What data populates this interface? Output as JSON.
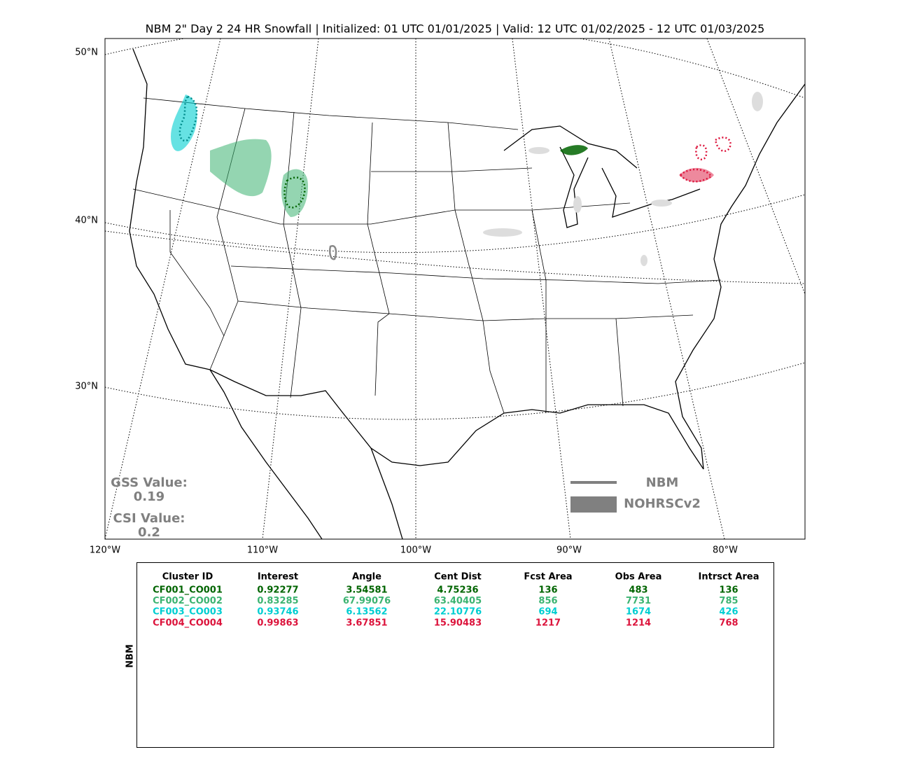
{
  "map": {
    "title": "NBM 2\" Day 2 24 HR Snowfall | Initialized: 01 UTC 01/01/2025 | Valid: 12 UTC 01/02/2025 - 12 UTC 01/03/2025",
    "lat_labels": [
      "50°N",
      "40°N",
      "30°N"
    ],
    "lon_labels": [
      "120°W",
      "110°W",
      "100°W",
      "90°W",
      "80°W"
    ],
    "stats": {
      "gss_label": "GSS Value:",
      "gss_value": "0.19",
      "csi_label": "CSI Value:",
      "csi_value": "0.2"
    },
    "legend": {
      "line_label": "NBM",
      "fill_label": "NOHRSCv2"
    }
  },
  "table": {
    "side_label": "NBM",
    "header": [
      "Cluster ID",
      "Interest",
      "Angle",
      "Cent Dist",
      "Fcst Area",
      "Obs Area",
      "Intrsct Area"
    ],
    "rows": [
      {
        "color": "#006400",
        "cells": [
          "CF001_CO001",
          "0.92277",
          "3.54581",
          "4.75236",
          "136",
          "483",
          "136"
        ]
      },
      {
        "color": "#3cb371",
        "cells": [
          "CF002_CO002",
          "0.83285",
          "67.99076",
          "63.40405",
          "856",
          "7731",
          "785"
        ]
      },
      {
        "color": "#00ced1",
        "cells": [
          "CF003_CO003",
          "0.93746",
          "6.13562",
          "22.10776",
          "694",
          "1674",
          "426"
        ]
      },
      {
        "color": "#dc143c",
        "cells": [
          "CF004_CO004",
          "0.99863",
          "3.67851",
          "15.90483",
          "1217",
          "1214",
          "768"
        ]
      }
    ]
  }
}
